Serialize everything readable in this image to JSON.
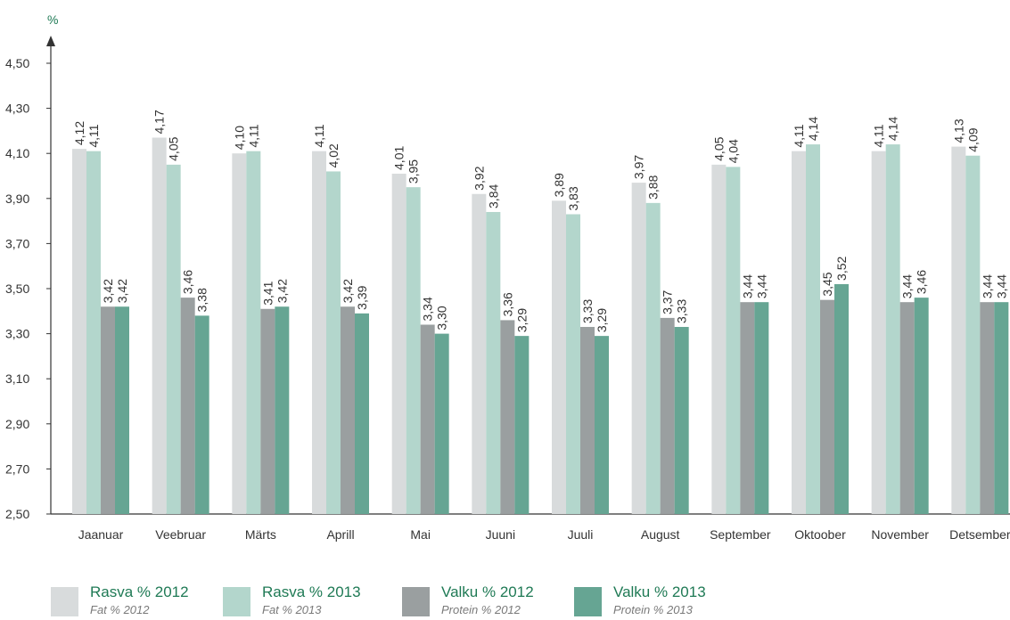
{
  "chart_data": {
    "type": "bar",
    "ylabel": "%",
    "ylim": [
      2.5,
      4.5
    ],
    "yticks": [
      "2,50",
      "2,70",
      "2,90",
      "3,10",
      "3,30",
      "3,50",
      "3,70",
      "3,90",
      "4,10",
      "4,30",
      "4,50"
    ],
    "categories": [
      "Jaanuar",
      "Veebruar",
      "Märts",
      "Aprill",
      "Mai",
      "Juuni",
      "Juuli",
      "August",
      "September",
      "Oktoober",
      "November",
      "Detsember"
    ],
    "series": [
      {
        "name": "Rasva % 2012",
        "subtitle": "Fat % 2012",
        "color": "#d8dbdc",
        "values": [
          4.12,
          4.17,
          4.1,
          4.11,
          4.01,
          3.92,
          3.89,
          3.97,
          4.05,
          4.11,
          4.11,
          4.13
        ],
        "labels": [
          "4,12",
          "4,17",
          "4,10",
          "4,11",
          "4,01",
          "3,92",
          "3,89",
          "3,97",
          "4,05",
          "4,11",
          "4,11",
          "4,13"
        ]
      },
      {
        "name": "Rasva % 2013",
        "subtitle": "Fat % 2013",
        "color": "#b3d6cc",
        "values": [
          4.11,
          4.05,
          4.11,
          4.02,
          3.95,
          3.84,
          3.83,
          3.88,
          4.04,
          4.14,
          4.14,
          4.09
        ],
        "labels": [
          "4,11",
          "4,05",
          "4,11",
          "4,02",
          "3,95",
          "3,84",
          "3,83",
          "3,88",
          "4,04",
          "4,14",
          "4,14",
          "4,09"
        ]
      },
      {
        "name": "Valku % 2012",
        "subtitle": "Protein % 2012",
        "color": "#9a9fa0",
        "values": [
          3.42,
          3.46,
          3.41,
          3.42,
          3.34,
          3.36,
          3.33,
          3.37,
          3.44,
          3.45,
          3.44,
          3.44
        ],
        "labels": [
          "3,42",
          "3,46",
          "3,41",
          "3,42",
          "3,34",
          "3,36",
          "3,33",
          "3,37",
          "3,44",
          "3,45",
          "3,44",
          "3,44"
        ]
      },
      {
        "name": "Valku % 2013",
        "subtitle": "Protein % 2013",
        "color": "#66a593",
        "values": [
          3.42,
          3.38,
          3.42,
          3.39,
          3.3,
          3.29,
          3.29,
          3.33,
          3.44,
          3.52,
          3.46,
          3.44
        ],
        "labels": [
          "3,42",
          "3,38",
          "3,42",
          "3,39",
          "3,30",
          "3,29",
          "3,29",
          "3,33",
          "3,44",
          "3,52",
          "3,46",
          "3,44"
        ]
      }
    ],
    "legend": "bottom",
    "grid": false
  }
}
